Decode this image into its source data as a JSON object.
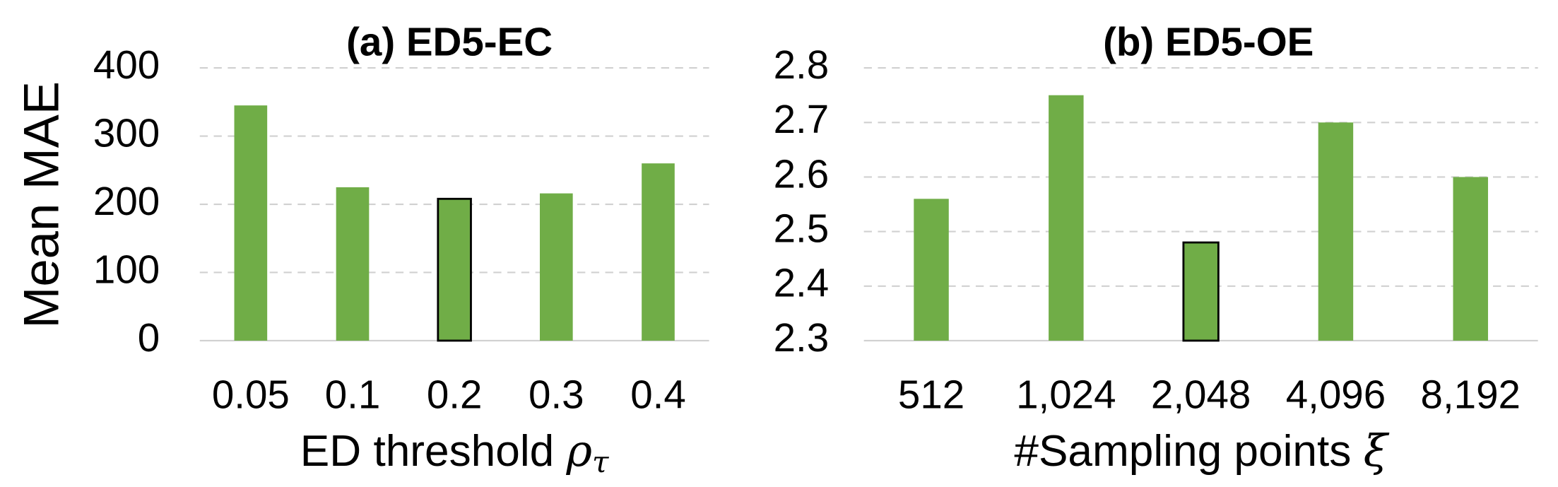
{
  "chart_data": [
    {
      "type": "bar",
      "title": "(a) ED5-EC",
      "ylabel": "Mean MAE",
      "xlabel": "ED threshold",
      "xlabel_symbol": "ρ",
      "xlabel_subscript": "τ",
      "categories": [
        "0.05",
        "0.1",
        "0.2",
        "0.3",
        "0.4"
      ],
      "values": [
        345,
        225,
        208,
        216,
        260
      ],
      "color": "#70ad47",
      "highlight": 2,
      "ylim": [
        0,
        400
      ],
      "yticks": [
        0,
        100,
        200,
        300,
        400
      ],
      "grid": true
    },
    {
      "type": "bar",
      "title": "(b) ED5-OE",
      "xlabel": "#Sampling points",
      "xlabel_symbol": "ξ",
      "categories": [
        "512",
        "1,024",
        "2,048",
        "4,096",
        "8,192"
      ],
      "values": [
        2.56,
        2.75,
        2.48,
        2.7,
        2.6
      ],
      "color": "#70ad47",
      "highlight": 2,
      "ylim": [
        2.3,
        2.8
      ],
      "yticks": [
        2.3,
        2.4,
        2.5,
        2.6,
        2.7,
        2.8
      ],
      "grid": true
    }
  ]
}
